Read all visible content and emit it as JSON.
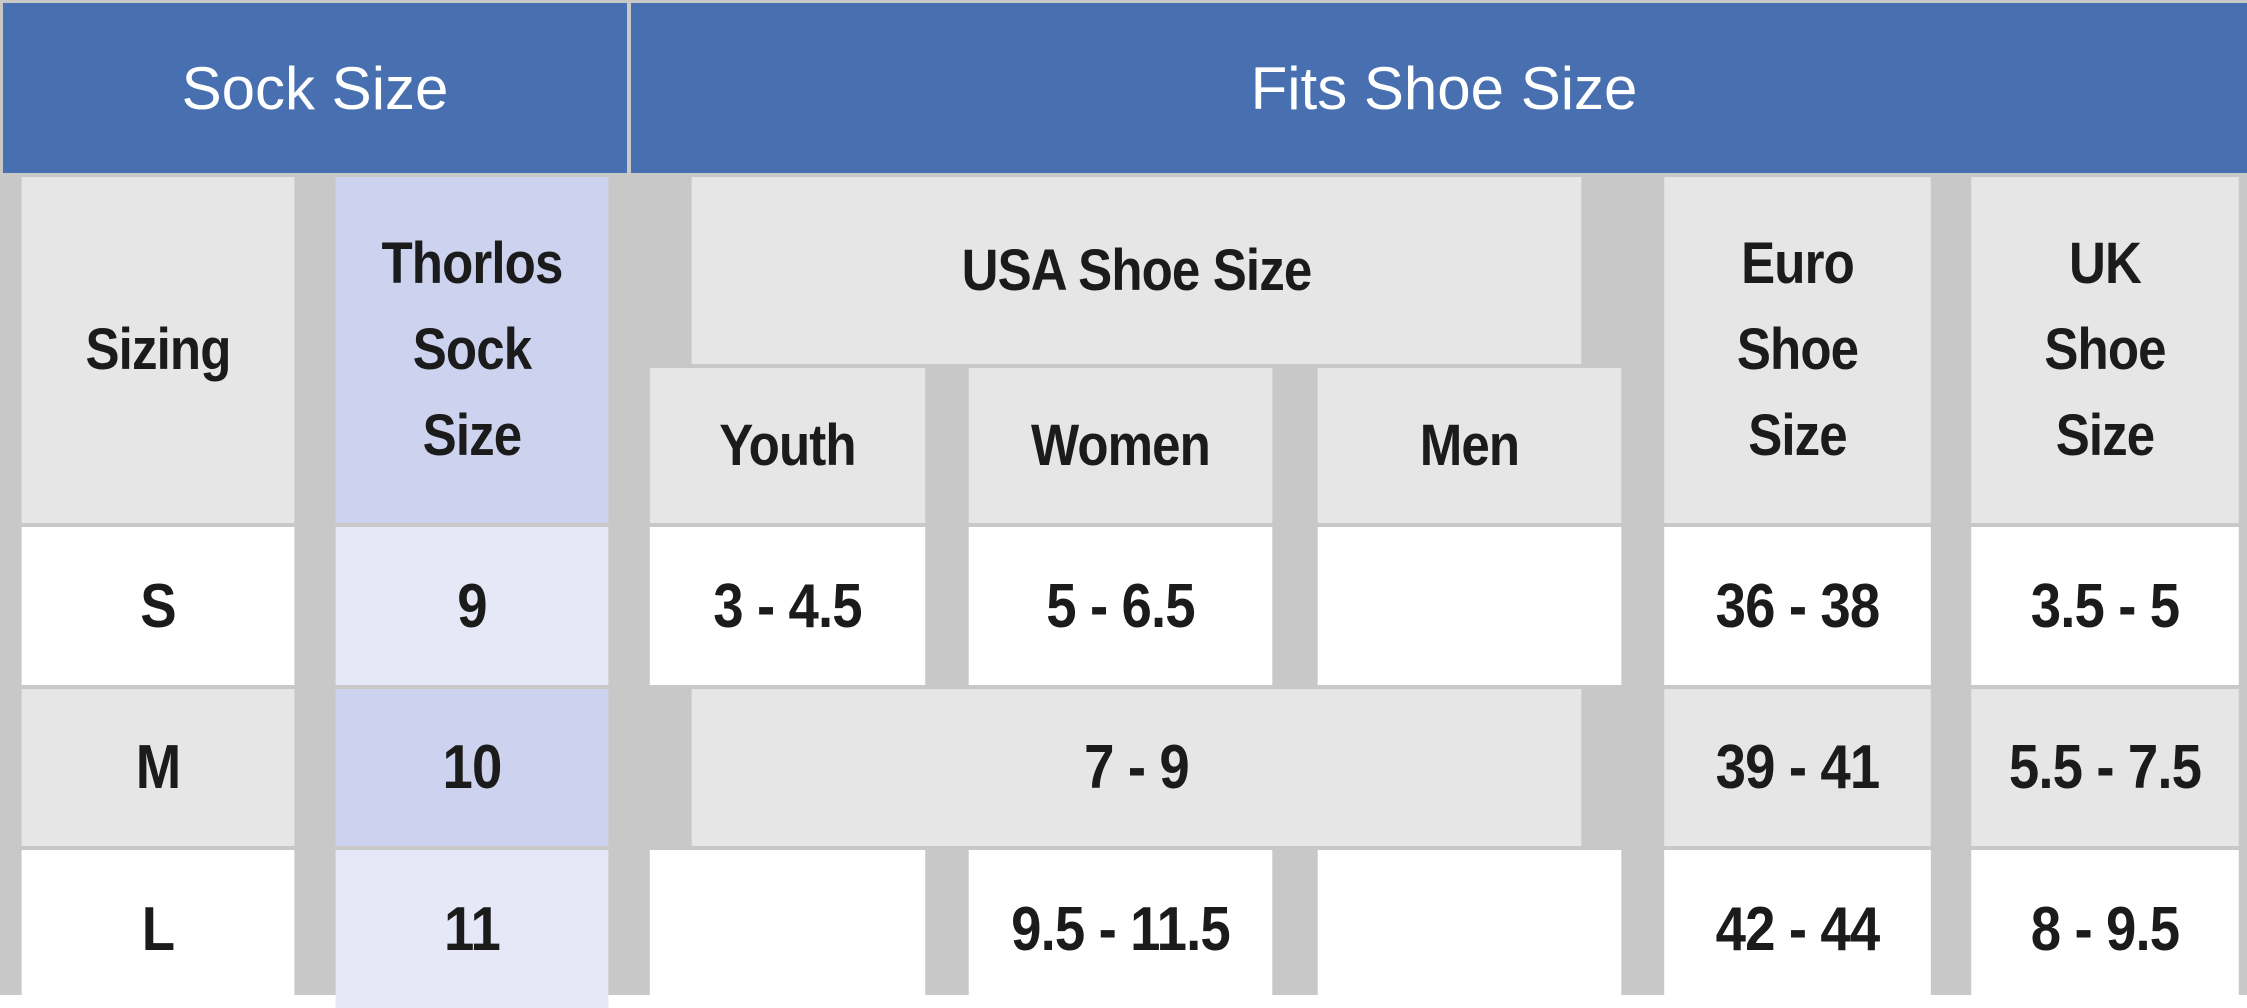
{
  "header": {
    "sock_size": "Sock Size",
    "fits_shoe_size": "Fits Shoe Size"
  },
  "subheader": {
    "sizing": "Sizing",
    "thorlos_sock_size": "Thorlos\nSock\nSize",
    "usa_shoe_size": "USA Shoe Size",
    "euro_shoe_size": "Euro\nShoe\nSize",
    "uk_shoe_size": "UK\nShoe\nSize",
    "youth": "Youth",
    "women": "Women",
    "men": "Men"
  },
  "rows": [
    {
      "sizing": "S",
      "thorlos": "9",
      "youth": "3 - 4.5",
      "women": "5 - 6.5",
      "men": "",
      "euro": "36 - 38",
      "uk": "3.5 - 5"
    },
    {
      "sizing": "M",
      "thorlos": "10",
      "usa_combined": "7 - 9",
      "euro": "39 - 41",
      "uk": "5.5 - 7.5"
    },
    {
      "sizing": "L",
      "thorlos": "11",
      "youth": "",
      "women": "9.5 - 11.5",
      "men": "",
      "euro": "42 - 44",
      "uk": "8 - 9.5"
    }
  ],
  "colors": {
    "header_blue": "#4870b0",
    "header_gray": "#e6e6e6",
    "lavender": "#cdd2ef",
    "lavender_light": "#e7e8f7",
    "grid_line": "#c8c8c8"
  }
}
